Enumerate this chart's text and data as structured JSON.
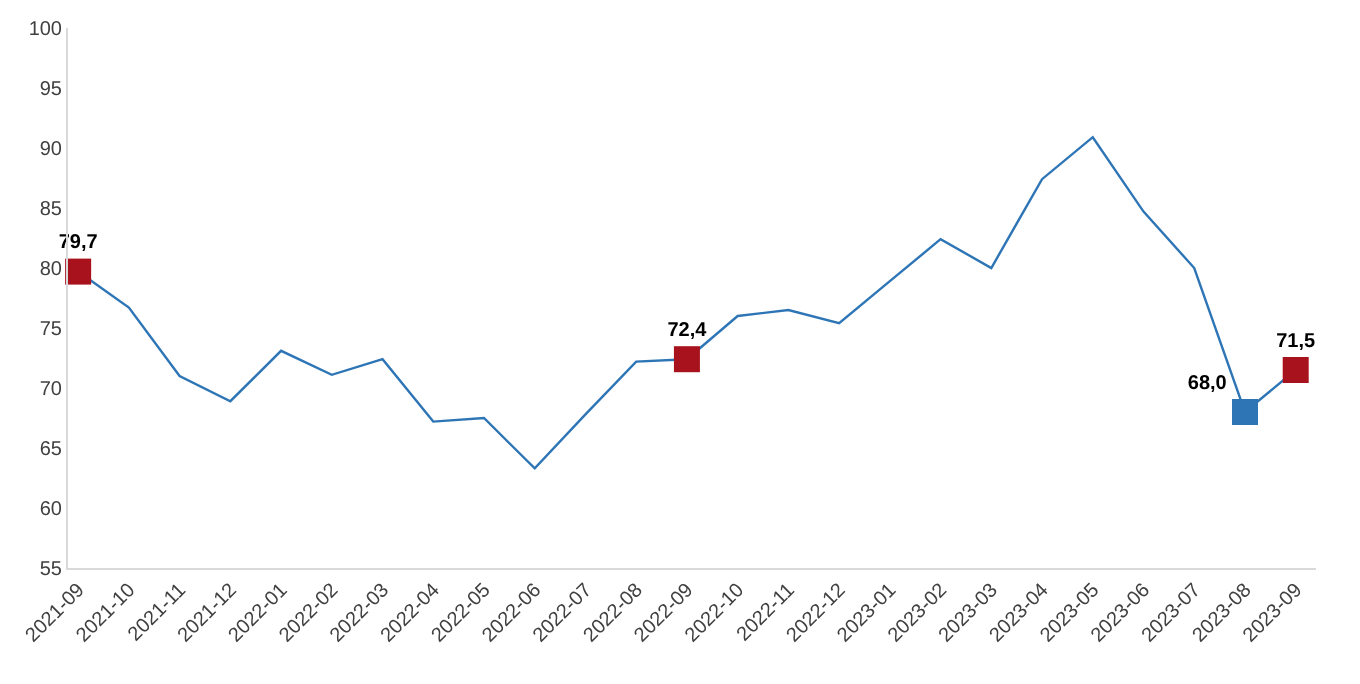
{
  "chart_data": {
    "type": "line",
    "categories": [
      "2021-09",
      "2021-10",
      "2021-11",
      "2021-12",
      "2022-01",
      "2022-02",
      "2022-03",
      "2022-04",
      "2022-05",
      "2022-06",
      "2022-07",
      "2022-08",
      "2022-09",
      "2022-10",
      "2022-11",
      "2022-12",
      "2023-01",
      "2023-02",
      "2023-03",
      "2023-04",
      "2023-05",
      "2023-06",
      "2023-07",
      "2023-08",
      "2023-09"
    ],
    "series": [
      {
        "color": "#2e75b6",
        "marker": "none",
        "values": [
          79.7,
          76.7,
          71.0,
          68.9,
          73.1,
          71.1,
          72.4,
          67.2,
          67.5,
          63.3,
          67.8,
          72.2,
          72.4,
          76.0,
          76.5,
          75.4,
          78.9,
          82.4,
          80.0,
          87.4,
          90.9,
          84.7,
          80.0,
          68.0,
          71.5
        ]
      },
      {
        "type": "scatter",
        "marker": "square",
        "values": [
          79.7,
          null,
          null,
          null,
          null,
          null,
          null,
          null,
          null,
          null,
          null,
          null,
          72.4,
          null,
          null,
          null,
          null,
          null,
          null,
          null,
          null,
          null,
          null,
          68.0,
          71.5
        ],
        "colors": [
          "#a8121c",
          null,
          null,
          null,
          null,
          null,
          null,
          null,
          null,
          null,
          null,
          null,
          "#a8121c",
          null,
          null,
          null,
          null,
          null,
          null,
          null,
          null,
          null,
          null,
          "#2e75b6",
          "#a8121c"
        ],
        "value_labels": [
          "79,7",
          null,
          null,
          null,
          null,
          null,
          null,
          null,
          null,
          null,
          null,
          null,
          "72,4",
          null,
          null,
          null,
          null,
          null,
          null,
          null,
          null,
          null,
          null,
          "68,0",
          "71,5"
        ]
      }
    ],
    "ylim": [
      55,
      100
    ],
    "yticks": [
      55,
      60,
      65,
      70,
      75,
      80,
      85,
      90,
      95,
      100
    ],
    "grid": false,
    "legend": false
  }
}
